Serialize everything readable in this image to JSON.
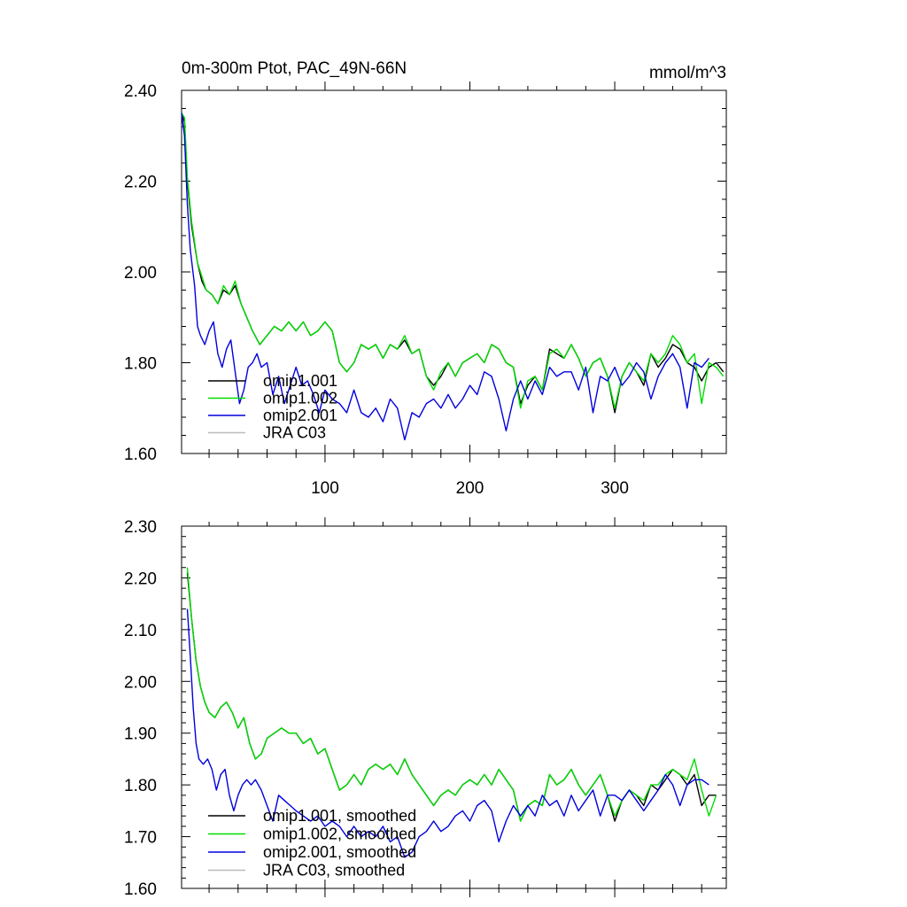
{
  "chart_data": [
    {
      "type": "line",
      "title": "0m-300m Ptot, PAC_49N-66N",
      "units": "mmol/m^3",
      "xlim": [
        1,
        377
      ],
      "ylim": [
        1.6,
        2.4
      ],
      "xticks": [
        100,
        200,
        300
      ],
      "xtick_labels": [
        "100",
        "200",
        "300"
      ],
      "yticks": [
        1.6,
        1.8,
        2.0,
        2.2,
        2.4
      ],
      "ytick_labels": [
        "1.60",
        "1.80",
        "2.00",
        "2.20",
        "2.40"
      ],
      "legend": [
        "omip1.001",
        "omip1.002",
        "omip2.001",
        "JRA C03"
      ],
      "legend_position": "bottom-left",
      "series": [
        {
          "name": "omip1.001",
          "color": "#000000",
          "x": [
            1,
            3,
            5,
            8,
            12,
            15,
            18,
            22,
            26,
            30,
            34,
            38,
            42,
            46,
            50,
            55,
            60,
            65,
            70,
            75,
            80,
            85,
            90,
            95,
            100,
            105,
            110,
            115,
            120,
            125,
            130,
            135,
            140,
            145,
            150,
            155,
            160,
            165,
            170,
            175,
            180,
            185,
            190,
            195,
            200,
            205,
            210,
            215,
            220,
            225,
            230,
            235,
            240,
            245,
            250,
            255,
            260,
            265,
            270,
            275,
            280,
            285,
            290,
            295,
            300,
            305,
            310,
            315,
            320,
            325,
            330,
            335,
            340,
            345,
            350,
            355,
            360,
            365,
            370,
            375
          ],
          "values": [
            2.35,
            2.33,
            2.2,
            2.1,
            2.02,
            1.98,
            1.96,
            1.95,
            1.93,
            1.96,
            1.95,
            1.97,
            1.93,
            1.9,
            1.87,
            1.84,
            1.86,
            1.88,
            1.87,
            1.89,
            1.87,
            1.89,
            1.86,
            1.87,
            1.89,
            1.87,
            1.8,
            1.78,
            1.8,
            1.84,
            1.83,
            1.84,
            1.81,
            1.84,
            1.83,
            1.85,
            1.82,
            1.83,
            1.77,
            1.75,
            1.77,
            1.8,
            1.77,
            1.8,
            1.81,
            1.82,
            1.8,
            1.84,
            1.83,
            1.8,
            1.79,
            1.71,
            1.75,
            1.77,
            1.74,
            1.83,
            1.82,
            1.81,
            1.84,
            1.81,
            1.77,
            1.8,
            1.81,
            1.77,
            1.69,
            1.77,
            1.8,
            1.78,
            1.75,
            1.82,
            1.79,
            1.81,
            1.84,
            1.83,
            1.8,
            1.79,
            1.76,
            1.79,
            1.8,
            1.78
          ]
        },
        {
          "name": "omip1.002",
          "color": "#00dd00",
          "x": [
            1,
            3,
            5,
            8,
            12,
            15,
            18,
            22,
            26,
            30,
            34,
            38,
            42,
            46,
            50,
            55,
            60,
            65,
            70,
            75,
            80,
            85,
            90,
            95,
            100,
            105,
            110,
            115,
            120,
            125,
            130,
            135,
            140,
            145,
            150,
            155,
            160,
            165,
            170,
            175,
            180,
            185,
            190,
            195,
            200,
            205,
            210,
            215,
            220,
            225,
            230,
            235,
            240,
            245,
            250,
            255,
            260,
            265,
            270,
            275,
            280,
            285,
            290,
            295,
            300,
            305,
            310,
            315,
            320,
            325,
            330,
            335,
            340,
            345,
            350,
            355,
            360,
            365,
            370,
            375
          ],
          "values": [
            2.35,
            2.34,
            2.21,
            2.11,
            2.02,
            1.99,
            1.96,
            1.95,
            1.93,
            1.97,
            1.95,
            1.98,
            1.93,
            1.9,
            1.87,
            1.84,
            1.86,
            1.88,
            1.87,
            1.89,
            1.87,
            1.89,
            1.86,
            1.87,
            1.89,
            1.87,
            1.8,
            1.78,
            1.8,
            1.84,
            1.83,
            1.84,
            1.81,
            1.84,
            1.83,
            1.86,
            1.82,
            1.83,
            1.77,
            1.74,
            1.78,
            1.8,
            1.77,
            1.8,
            1.81,
            1.82,
            1.8,
            1.84,
            1.83,
            1.8,
            1.79,
            1.7,
            1.76,
            1.77,
            1.74,
            1.82,
            1.83,
            1.81,
            1.84,
            1.81,
            1.77,
            1.8,
            1.81,
            1.77,
            1.7,
            1.77,
            1.8,
            1.78,
            1.76,
            1.82,
            1.8,
            1.82,
            1.86,
            1.84,
            1.8,
            1.82,
            1.71,
            1.8,
            1.79,
            1.77
          ]
        },
        {
          "name": "omip2.001",
          "color": "#0000dd",
          "x": [
            1,
            3,
            5,
            7,
            10,
            12,
            14,
            17,
            20,
            23,
            26,
            29,
            32,
            35,
            38,
            41,
            44,
            47,
            50,
            53,
            56,
            60,
            64,
            68,
            72,
            76,
            80,
            84,
            88,
            92,
            96,
            100,
            105,
            110,
            115,
            120,
            125,
            130,
            135,
            140,
            145,
            150,
            155,
            160,
            165,
            170,
            175,
            180,
            185,
            190,
            195,
            200,
            205,
            210,
            215,
            220,
            225,
            230,
            235,
            240,
            245,
            250,
            255,
            260,
            265,
            270,
            275,
            280,
            285,
            290,
            295,
            300,
            305,
            310,
            315,
            320,
            325,
            330,
            335,
            340,
            345,
            350,
            355,
            360,
            365
          ],
          "values": [
            2.35,
            2.3,
            2.15,
            2.05,
            1.97,
            1.88,
            1.86,
            1.84,
            1.87,
            1.89,
            1.82,
            1.79,
            1.83,
            1.85,
            1.78,
            1.71,
            1.74,
            1.79,
            1.8,
            1.82,
            1.79,
            1.8,
            1.73,
            1.77,
            1.71,
            1.75,
            1.79,
            1.75,
            1.76,
            1.73,
            1.69,
            1.74,
            1.72,
            1.71,
            1.69,
            1.74,
            1.69,
            1.68,
            1.7,
            1.67,
            1.72,
            1.7,
            1.63,
            1.69,
            1.68,
            1.71,
            1.72,
            1.7,
            1.73,
            1.7,
            1.72,
            1.75,
            1.73,
            1.78,
            1.77,
            1.72,
            1.65,
            1.72,
            1.76,
            1.72,
            1.76,
            1.73,
            1.79,
            1.77,
            1.78,
            1.78,
            1.74,
            1.79,
            1.69,
            1.77,
            1.76,
            1.79,
            1.75,
            1.77,
            1.8,
            1.78,
            1.72,
            1.77,
            1.8,
            1.82,
            1.79,
            1.7,
            1.8,
            1.79,
            1.81
          ]
        },
        {
          "name": "JRA C03",
          "color": "#bbbbbb",
          "x": [],
          "values": []
        }
      ]
    },
    {
      "type": "line",
      "title": "",
      "xlim": [
        1,
        377
      ],
      "ylim": [
        1.6,
        2.3
      ],
      "xticks": [
        100,
        200,
        300
      ],
      "xtick_labels": [],
      "yticks": [
        1.6,
        1.7,
        1.8,
        1.9,
        2.0,
        2.1,
        2.2,
        2.3
      ],
      "ytick_labels": [
        "1.60",
        "1.70",
        "1.80",
        "1.90",
        "2.00",
        "2.10",
        "2.20",
        "2.30"
      ],
      "legend": [
        "omip1.001, smoothed",
        "omip1.002, smoothed",
        "omip2.001, smoothed",
        "JRA C03, smoothed"
      ],
      "legend_position": "bottom-left",
      "series": [
        {
          "name": "omip1.001, smoothed",
          "color": "#000000",
          "x": [
            5,
            8,
            11,
            14,
            17,
            20,
            24,
            28,
            32,
            36,
            40,
            44,
            48,
            52,
            56,
            60,
            65,
            70,
            75,
            80,
            85,
            90,
            95,
            100,
            105,
            110,
            115,
            120,
            125,
            130,
            135,
            140,
            145,
            150,
            155,
            160,
            165,
            170,
            175,
            180,
            185,
            190,
            195,
            200,
            205,
            210,
            215,
            220,
            225,
            230,
            235,
            240,
            245,
            250,
            255,
            260,
            265,
            270,
            275,
            280,
            285,
            290,
            295,
            300,
            305,
            310,
            315,
            320,
            325,
            330,
            335,
            340,
            345,
            350,
            355,
            360,
            365,
            370
          ],
          "values": [
            2.21,
            2.12,
            2.04,
            1.99,
            1.96,
            1.94,
            1.93,
            1.95,
            1.96,
            1.94,
            1.91,
            1.93,
            1.88,
            1.85,
            1.86,
            1.89,
            1.9,
            1.91,
            1.9,
            1.9,
            1.88,
            1.89,
            1.86,
            1.87,
            1.83,
            1.79,
            1.8,
            1.82,
            1.8,
            1.83,
            1.84,
            1.83,
            1.84,
            1.82,
            1.85,
            1.82,
            1.8,
            1.78,
            1.76,
            1.78,
            1.79,
            1.78,
            1.8,
            1.81,
            1.8,
            1.82,
            1.8,
            1.83,
            1.81,
            1.79,
            1.73,
            1.76,
            1.77,
            1.76,
            1.82,
            1.8,
            1.81,
            1.83,
            1.8,
            1.78,
            1.8,
            1.82,
            1.78,
            1.73,
            1.77,
            1.79,
            1.78,
            1.76,
            1.8,
            1.79,
            1.81,
            1.83,
            1.82,
            1.8,
            1.82,
            1.76,
            1.78,
            1.78
          ]
        },
        {
          "name": "omip1.002, smoothed",
          "color": "#00dd00",
          "x": [
            5,
            8,
            11,
            14,
            17,
            20,
            24,
            28,
            32,
            36,
            40,
            44,
            48,
            52,
            56,
            60,
            65,
            70,
            75,
            80,
            85,
            90,
            95,
            100,
            105,
            110,
            115,
            120,
            125,
            130,
            135,
            140,
            145,
            150,
            155,
            160,
            165,
            170,
            175,
            180,
            185,
            190,
            195,
            200,
            205,
            210,
            215,
            220,
            225,
            230,
            235,
            240,
            245,
            250,
            255,
            260,
            265,
            270,
            275,
            280,
            285,
            290,
            295,
            300,
            305,
            310,
            315,
            320,
            325,
            330,
            335,
            340,
            345,
            350,
            355,
            360,
            365,
            370
          ],
          "values": [
            2.22,
            2.12,
            2.04,
            1.99,
            1.96,
            1.94,
            1.93,
            1.95,
            1.96,
            1.94,
            1.91,
            1.93,
            1.88,
            1.85,
            1.86,
            1.89,
            1.9,
            1.91,
            1.9,
            1.9,
            1.88,
            1.89,
            1.86,
            1.87,
            1.83,
            1.79,
            1.8,
            1.82,
            1.8,
            1.83,
            1.84,
            1.83,
            1.84,
            1.82,
            1.85,
            1.82,
            1.8,
            1.78,
            1.76,
            1.78,
            1.79,
            1.78,
            1.8,
            1.81,
            1.8,
            1.82,
            1.8,
            1.83,
            1.81,
            1.79,
            1.73,
            1.76,
            1.77,
            1.76,
            1.82,
            1.8,
            1.81,
            1.83,
            1.8,
            1.78,
            1.8,
            1.82,
            1.78,
            1.74,
            1.77,
            1.79,
            1.78,
            1.77,
            1.8,
            1.8,
            1.82,
            1.83,
            1.82,
            1.81,
            1.85,
            1.79,
            1.74,
            1.78
          ]
        },
        {
          "name": "omip2.001, smoothed",
          "color": "#0000dd",
          "x": [
            5,
            7,
            9,
            11,
            13,
            16,
            19,
            22,
            25,
            28,
            31,
            34,
            37,
            40,
            43,
            46,
            49,
            52,
            56,
            60,
            64,
            68,
            72,
            76,
            80,
            85,
            90,
            95,
            100,
            105,
            110,
            115,
            120,
            125,
            130,
            135,
            140,
            145,
            150,
            155,
            160,
            165,
            170,
            175,
            180,
            185,
            190,
            195,
            200,
            205,
            210,
            215,
            220,
            225,
            230,
            235,
            240,
            245,
            250,
            255,
            260,
            265,
            270,
            275,
            280,
            285,
            290,
            295,
            300,
            305,
            310,
            315,
            320,
            325,
            330,
            335,
            340,
            345,
            350,
            355,
            360,
            365
          ],
          "values": [
            2.14,
            2.05,
            1.95,
            1.88,
            1.85,
            1.84,
            1.85,
            1.83,
            1.79,
            1.82,
            1.83,
            1.78,
            1.75,
            1.78,
            1.8,
            1.81,
            1.8,
            1.81,
            1.79,
            1.76,
            1.73,
            1.78,
            1.77,
            1.76,
            1.75,
            1.74,
            1.73,
            1.74,
            1.72,
            1.73,
            1.72,
            1.7,
            1.72,
            1.7,
            1.71,
            1.7,
            1.72,
            1.69,
            1.7,
            1.66,
            1.67,
            1.7,
            1.71,
            1.73,
            1.71,
            1.72,
            1.74,
            1.75,
            1.73,
            1.76,
            1.77,
            1.75,
            1.69,
            1.73,
            1.76,
            1.74,
            1.76,
            1.74,
            1.78,
            1.76,
            1.77,
            1.74,
            1.78,
            1.75,
            1.77,
            1.79,
            1.74,
            1.78,
            1.78,
            1.77,
            1.79,
            1.77,
            1.75,
            1.77,
            1.79,
            1.82,
            1.8,
            1.76,
            1.8,
            1.81,
            1.81,
            1.8
          ]
        },
        {
          "name": "JRA C03, smoothed",
          "color": "#bbbbbb",
          "x": [],
          "values": []
        }
      ]
    }
  ]
}
